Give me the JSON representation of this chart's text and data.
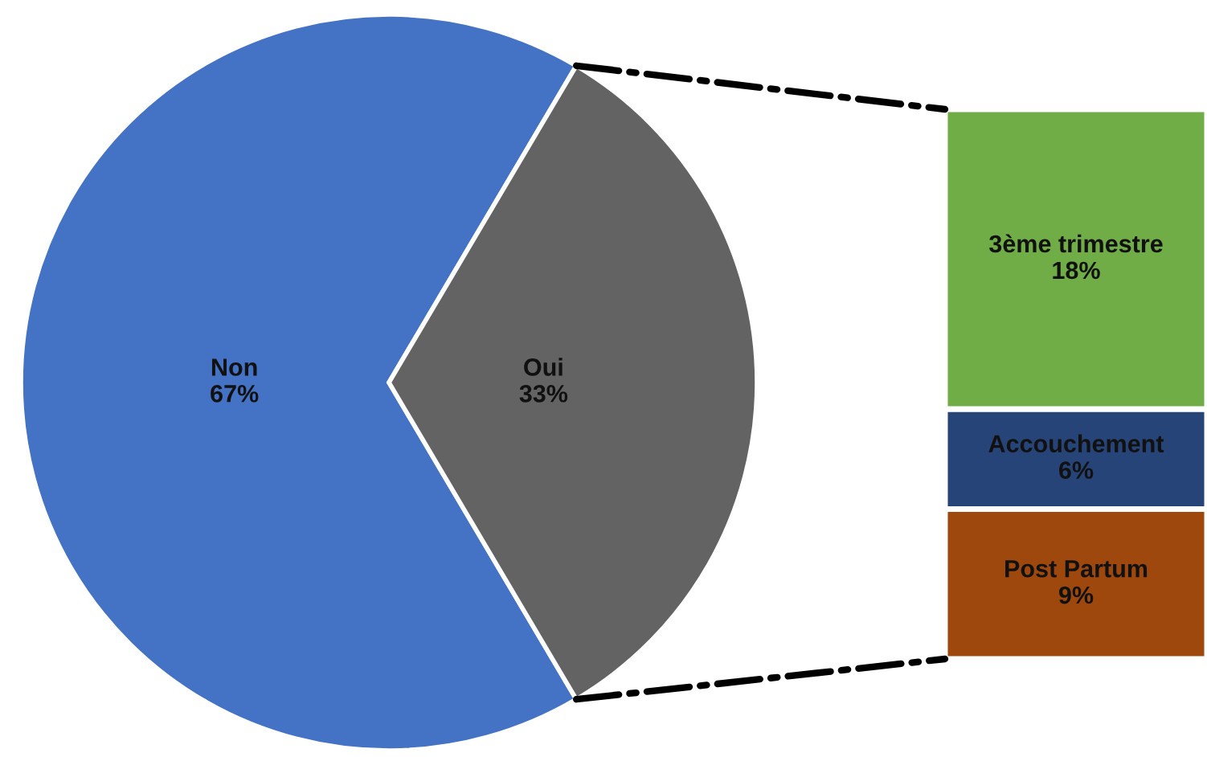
{
  "chart_data": [
    {
      "type": "pie",
      "categories": [
        "Non",
        "Oui"
      ],
      "values": [
        67,
        33
      ],
      "colors": [
        "#4472c4",
        "#636363"
      ],
      "value_labels": [
        "67%",
        "33%"
      ]
    },
    {
      "type": "bar",
      "stacked": true,
      "categories": [
        null
      ],
      "series": [
        {
          "name": "Post Partum",
          "color": "#9e480e",
          "values": [
            9
          ],
          "value_labels": [
            "9%"
          ]
        },
        {
          "name": "Accouchement",
          "color": "#264478",
          "values": [
            6
          ],
          "value_labels": [
            "6%"
          ]
        },
        {
          "name": "3ème trimestre",
          "color": "#70ad47",
          "values": [
            18
          ],
          "value_labels": [
            "18%"
          ]
        }
      ]
    }
  ]
}
